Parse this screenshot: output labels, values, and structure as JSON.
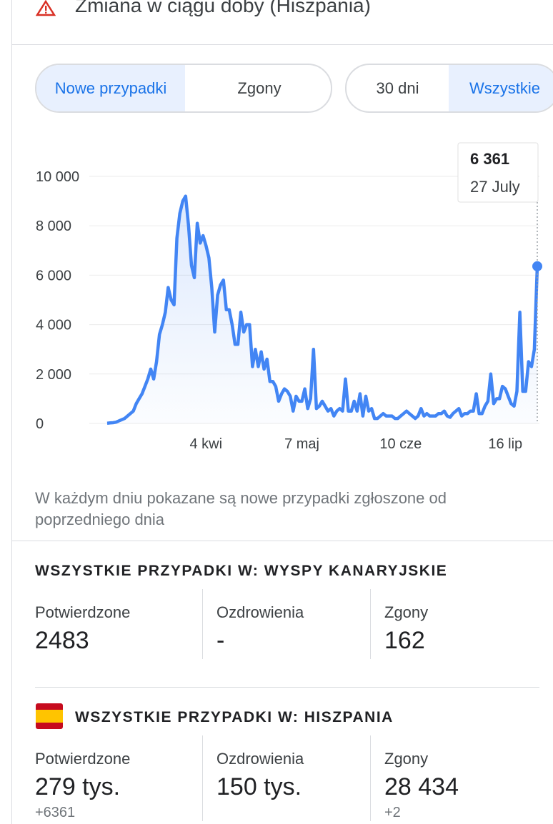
{
  "header": {
    "title": "Zmiana w ciągu doby (Hiszpania)"
  },
  "tabs": {
    "metric": [
      "Nowe przypadki",
      "Zgony"
    ],
    "range": [
      "30 dni",
      "Wszystkie"
    ]
  },
  "chart_data": {
    "type": "line",
    "categories": [
      null,
      null,
      null,
      null,
      null,
      null,
      null,
      null,
      null,
      null,
      null,
      null,
      null,
      null,
      null,
      null,
      null,
      null,
      null,
      null,
      null,
      null,
      null,
      null,
      null,
      null,
      null,
      null,
      null,
      null,
      null,
      null,
      null,
      null,
      "4 kwi",
      null,
      null,
      null,
      null,
      null,
      null,
      null,
      null,
      null,
      null,
      null,
      null,
      null,
      null,
      null,
      null,
      null,
      null,
      null,
      null,
      null,
      null,
      null,
      null,
      null,
      null,
      null,
      null,
      null,
      null,
      null,
      null,
      "7 maj",
      null,
      null,
      null,
      null,
      null,
      null,
      null,
      null,
      null,
      null,
      null,
      null,
      null,
      null,
      null,
      null,
      null,
      null,
      null,
      null,
      null,
      null,
      null,
      null,
      null,
      null,
      null,
      null,
      null,
      null,
      null,
      null,
      null,
      "10 cze",
      null,
      null,
      null,
      null,
      null,
      null,
      null,
      null,
      null,
      null,
      null,
      null,
      null,
      null,
      null,
      null,
      null,
      null,
      null,
      null,
      null,
      null,
      null,
      null,
      null,
      null,
      null,
      null,
      null,
      null,
      null,
      null,
      null,
      null,
      null,
      "16 lip",
      null,
      null,
      null,
      null,
      null,
      null,
      null,
      null,
      null,
      null,
      null
    ],
    "series": [
      {
        "name": "Nowe przypadki",
        "color": "#4285f4",
        "values": [
          10,
          20,
          30,
          50,
          100,
          150,
          200,
          300,
          400,
          500,
          800,
          1000,
          1200,
          1500,
          1800,
          2200,
          1800,
          2500,
          3600,
          4000,
          4500,
          5500,
          5000,
          4800,
          7500,
          8500,
          9000,
          9200,
          8000,
          6400,
          5900,
          8100,
          7300,
          7600,
          7200,
          6700,
          5500,
          3700,
          5200,
          5600,
          5800,
          4600,
          4600,
          4000,
          3200,
          3200,
          4500,
          3700,
          4000,
          4000,
          2300,
          3000,
          2300,
          2900,
          2200,
          2600,
          1700,
          1700,
          1500,
          900,
          1200,
          1400,
          1300,
          1100,
          500,
          1100,
          900,
          900,
          1400,
          600,
          1000,
          3000,
          600,
          700,
          900,
          700,
          500,
          600,
          300,
          500,
          600,
          500,
          1800,
          500,
          500,
          900,
          500,
          1200,
          300,
          1100,
          500,
          600,
          200,
          200,
          300,
          400,
          300,
          300,
          300,
          200,
          200,
          300,
          400,
          500,
          400,
          300,
          200,
          300,
          600,
          300,
          400,
          300,
          300,
          300,
          400,
          400,
          500,
          300,
          250,
          400,
          500,
          600,
          300,
          400,
          400,
          500,
          500,
          1200,
          400,
          400,
          700,
          900,
          2000,
          800,
          1000,
          1000,
          1500,
          1400,
          1100,
          800,
          700,
          1300,
          4500,
          1300,
          1300,
          2500,
          2300,
          3000,
          6361
        ]
      }
    ],
    "ylim": [
      0,
      10000
    ],
    "yticks": [
      0,
      {
        "value": 2000,
        "label": "2 000"
      },
      {
        "value": 4000,
        "label": "4 000"
      },
      {
        "value": 6000,
        "label": "6 000"
      },
      {
        "value": 8000,
        "label": "8 000"
      },
      {
        "value": 10000,
        "label": "10 000"
      }
    ],
    "grid": true,
    "tooltip": {
      "label": "6 361",
      "date": "27 July"
    }
  },
  "note": "W każdym dniu pokazane są nowe przypadki zgłoszone od poprzedniego dnia",
  "sections": [
    {
      "title": "WSZYSTKIE PRZYPADKI W: WYSPY KANARYJSKIE",
      "stats": [
        {
          "label": "Potwierdzone",
          "value": "2483"
        },
        {
          "label": "Ozdrowienia",
          "value": "-"
        },
        {
          "label": "Zgony",
          "value": "162"
        }
      ]
    },
    {
      "title": "WSZYSTKIE PRZYPADKI W: HISZPANIA",
      "stats": [
        {
          "label": "Potwierdzone",
          "value": "279 tys.",
          "change": "+6361"
        },
        {
          "label": "Ozdrowienia",
          "value": "150 tys."
        },
        {
          "label": "Zgony",
          "value": "28 434",
          "change": "+2"
        }
      ]
    }
  ]
}
